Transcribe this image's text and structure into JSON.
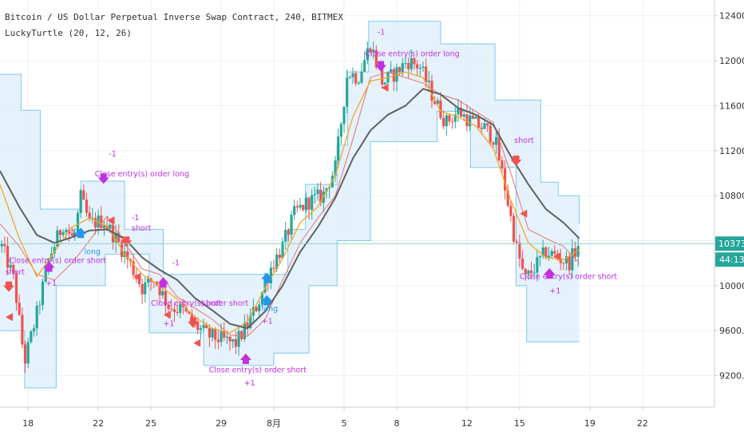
{
  "legend": {
    "title": "Bitcoin / US Dollar Perpetual Inverse Swap Contract, 240, BITMEX",
    "indicator": "LuckyTurtle (20, 12, 26)"
  },
  "price_badge": {
    "value": "10373.5",
    "countdown": "44:13"
  },
  "colors": {
    "up": "#26a69a",
    "down": "#ef5350",
    "channel_fill": "#dcedfb",
    "channel_line": "#7ec8ec",
    "slow_ma": "#606060",
    "fast_ma": "#f5a623",
    "trail": "#e57373",
    "annotation": "#c030e0",
    "long_text": "#2196f3",
    "badge": "#26a69a",
    "last_line": "#8fd0c9"
  },
  "chart_data": {
    "type": "candlestick",
    "y_axis": {
      "ylim": [
        8920,
        12540
      ],
      "ticks": [
        9200,
        9600,
        10000,
        10400,
        10800,
        11200,
        11600,
        12000,
        12400
      ],
      "tick_labels": [
        "9200.0",
        "9600.0",
        "10000.0",
        "10400.0",
        "10800.0",
        "11200.0",
        "11600.0",
        "12000.0",
        "12400.0"
      ]
    },
    "x_axis": {
      "ticks": [
        {
          "label": "18",
          "day": 18
        },
        {
          "label": "22",
          "day": 22
        },
        {
          "label": "25",
          "day": 25
        },
        {
          "label": "29",
          "day": 29
        },
        {
          "label": "8月",
          "day": 32
        },
        {
          "label": "5",
          "day": 36
        },
        {
          "label": "8",
          "day": 39
        },
        {
          "label": "12",
          "day": 43
        },
        {
          "label": "15",
          "day": 46
        },
        {
          "label": "19",
          "day": 50
        },
        {
          "label": "22",
          "day": 53
        }
      ],
      "day_range": [
        16.4,
        57.1
      ]
    },
    "anchors": [
      [
        16.5,
        10350
      ],
      [
        17.2,
        10050
      ],
      [
        17.8,
        9320
      ],
      [
        18.5,
        9750
      ],
      [
        19.2,
        10250
      ],
      [
        20.0,
        10550
      ],
      [
        20.6,
        10400
      ],
      [
        21.0,
        10780
      ],
      [
        21.5,
        10550
      ],
      [
        22.3,
        10580
      ],
      [
        23.0,
        10420
      ],
      [
        23.8,
        10200
      ],
      [
        24.5,
        9980
      ],
      [
        25.2,
        10060
      ],
      [
        26.0,
        9820
      ],
      [
        26.8,
        9780
      ],
      [
        27.5,
        9650
      ],
      [
        28.2,
        9560
      ],
      [
        29.0,
        9520
      ],
      [
        29.8,
        9480
      ],
      [
        30.5,
        9650
      ],
      [
        31.2,
        9880
      ],
      [
        31.8,
        10150
      ],
      [
        32.5,
        10350
      ],
      [
        33.2,
        10650
      ],
      [
        34.0,
        10750
      ],
      [
        34.8,
        10800
      ],
      [
        35.5,
        11050
      ],
      [
        36.2,
        11900
      ],
      [
        36.8,
        11850
      ],
      [
        37.5,
        12150
      ],
      [
        38.2,
        11800
      ],
      [
        39.0,
        11900
      ],
      [
        39.6,
        12000
      ],
      [
        40.3,
        11950
      ],
      [
        41.0,
        11700
      ],
      [
        41.8,
        11450
      ],
      [
        42.5,
        11550
      ],
      [
        43.3,
        11450
      ],
      [
        44.0,
        11400
      ],
      [
        44.6,
        11300
      ],
      [
        45.2,
        10850
      ],
      [
        45.8,
        10350
      ],
      [
        46.3,
        10050
      ],
      [
        46.8,
        10150
      ],
      [
        47.5,
        10300
      ],
      [
        48.2,
        10250
      ],
      [
        48.8,
        10200
      ],
      [
        49.4,
        10373.5
      ]
    ],
    "slow_ma": [
      [
        16.4,
        11020
      ],
      [
        17.5,
        10700
      ],
      [
        18.5,
        10450
      ],
      [
        19.5,
        10380
      ],
      [
        20.5,
        10430
      ],
      [
        21.5,
        10490
      ],
      [
        22.5,
        10500
      ],
      [
        23.5,
        10420
      ],
      [
        24.5,
        10250
      ],
      [
        25.5,
        10140
      ],
      [
        26.5,
        10050
      ],
      [
        27.5,
        9890
      ],
      [
        28.5,
        9780
      ],
      [
        29.5,
        9660
      ],
      [
        30.5,
        9620
      ],
      [
        31.5,
        9770
      ],
      [
        32.5,
        10000
      ],
      [
        33.5,
        10300
      ],
      [
        34.5,
        10520
      ],
      [
        35.5,
        10780
      ],
      [
        36.5,
        11130
      ],
      [
        37.5,
        11380
      ],
      [
        38.5,
        11520
      ],
      [
        39.5,
        11600
      ],
      [
        40.5,
        11750
      ],
      [
        41.5,
        11700
      ],
      [
        42.5,
        11580
      ],
      [
        43.5,
        11520
      ],
      [
        44.5,
        11430
      ],
      [
        45.5,
        11150
      ],
      [
        46.5,
        10900
      ],
      [
        47.5,
        10680
      ],
      [
        48.5,
        10560
      ],
      [
        49.4,
        10420
      ]
    ],
    "fast_ma": [
      [
        16.4,
        10900
      ],
      [
        17.5,
        10420
      ],
      [
        18.5,
        10080
      ],
      [
        19.5,
        10300
      ],
      [
        20.5,
        10520
      ],
      [
        21.5,
        10600
      ],
      [
        22.5,
        10530
      ],
      [
        23.5,
        10280
      ],
      [
        24.5,
        10100
      ],
      [
        25.5,
        10000
      ],
      [
        26.5,
        9880
      ],
      [
        27.5,
        9720
      ],
      [
        28.5,
        9620
      ],
      [
        29.5,
        9580
      ],
      [
        30.5,
        9680
      ],
      [
        31.5,
        9980
      ],
      [
        32.5,
        10240
      ],
      [
        33.5,
        10560
      ],
      [
        34.5,
        10700
      ],
      [
        35.5,
        10980
      ],
      [
        36.5,
        11500
      ],
      [
        37.5,
        11820
      ],
      [
        38.5,
        11850
      ],
      [
        39.5,
        11900
      ],
      [
        40.5,
        11850
      ],
      [
        41.5,
        11550
      ],
      [
        42.5,
        11500
      ],
      [
        43.5,
        11420
      ],
      [
        44.5,
        11220
      ],
      [
        45.5,
        10760
      ],
      [
        46.5,
        10380
      ],
      [
        47.5,
        10250
      ],
      [
        48.5,
        10230
      ],
      [
        49.4,
        10320
      ]
    ],
    "trail": [
      [
        16.4,
        10550
      ],
      [
        17.5,
        10350
      ],
      [
        18.5,
        10100
      ],
      [
        19.5,
        10050
      ],
      [
        20.5,
        10200
      ],
      [
        21.5,
        10400
      ],
      [
        22.5,
        10620
      ],
      [
        23.5,
        10380
      ],
      [
        24.5,
        10150
      ],
      [
        25.5,
        10100
      ],
      [
        26.5,
        9900
      ],
      [
        27.5,
        9800
      ],
      [
        28.5,
        9700
      ],
      [
        29.5,
        9560
      ],
      [
        30.5,
        9550
      ],
      [
        31.5,
        9700
      ],
      [
        32.5,
        10050
      ],
      [
        33.5,
        10380
      ],
      [
        34.5,
        10600
      ],
      [
        35.5,
        10800
      ],
      [
        36.5,
        11300
      ],
      [
        37.5,
        11850
      ],
      [
        38.5,
        11900
      ],
      [
        39.5,
        11850
      ],
      [
        40.5,
        11800
      ],
      [
        41.5,
        11700
      ],
      [
        42.5,
        11650
      ],
      [
        43.5,
        11550
      ],
      [
        44.5,
        11450
      ],
      [
        45.5,
        11000
      ],
      [
        46.5,
        10500
      ],
      [
        47.5,
        10420
      ],
      [
        48.5,
        10350
      ],
      [
        49.4,
        10200
      ]
    ],
    "channel_upper": [
      [
        16.4,
        11880
      ],
      [
        17.6,
        11560
      ],
      [
        18.7,
        10680
      ],
      [
        20.0,
        10680
      ],
      [
        21.0,
        10930
      ],
      [
        22.2,
        10930
      ],
      [
        23.5,
        10500
      ],
      [
        24.6,
        10500
      ],
      [
        25.7,
        10100
      ],
      [
        27.8,
        10100
      ],
      [
        31.8,
        10100
      ],
      [
        32.8,
        10500
      ],
      [
        33.8,
        10900
      ],
      [
        35.6,
        11250
      ],
      [
        36.2,
        11900
      ],
      [
        37.4,
        12350
      ],
      [
        40.8,
        12350
      ],
      [
        41.5,
        12150
      ],
      [
        43.5,
        12150
      ],
      [
        44.6,
        11650
      ],
      [
        46.5,
        11650
      ],
      [
        47.2,
        10920
      ],
      [
        48.2,
        10800
      ],
      [
        49.4,
        10550
      ]
    ],
    "channel_lower": [
      [
        16.4,
        9600
      ],
      [
        17.2,
        9600
      ],
      [
        17.8,
        9090
      ],
      [
        19.5,
        9090
      ],
      [
        19.6,
        10000
      ],
      [
        21.6,
        10000
      ],
      [
        22.4,
        10280
      ],
      [
        24.4,
        10280
      ],
      [
        24.9,
        9580
      ],
      [
        27.8,
        9580
      ],
      [
        28.0,
        9290
      ],
      [
        31.8,
        9290
      ],
      [
        32.0,
        9400
      ],
      [
        33.4,
        9400
      ],
      [
        34.0,
        10000
      ],
      [
        35.2,
        10000
      ],
      [
        35.6,
        10400
      ],
      [
        36.9,
        10400
      ],
      [
        37.5,
        11280
      ],
      [
        40.8,
        11280
      ],
      [
        41.3,
        11550
      ],
      [
        42.8,
        11550
      ],
      [
        43.2,
        11050
      ],
      [
        45.6,
        11050
      ],
      [
        45.8,
        10000
      ],
      [
        46.3,
        10000
      ],
      [
        46.4,
        9500
      ],
      [
        49.4,
        9500
      ]
    ],
    "annotations": [
      {
        "text": "short",
        "day": 16.7,
        "price": 10100,
        "color": "annotation"
      },
      {
        "text": "Close entry(s) order short",
        "day": 16.9,
        "price": 10200,
        "color": "annotation"
      },
      {
        "text": "+1",
        "day": 19.0,
        "price": 10000,
        "color": "annotation"
      },
      {
        "text": "-1",
        "day": 20.3,
        "price": 10450,
        "color": "annotation"
      },
      {
        "text": "long",
        "day": 21.2,
        "price": 10280,
        "color": "long_text"
      },
      {
        "text": "-1",
        "day": 22.6,
        "price": 11150,
        "color": "annotation"
      },
      {
        "text": "Close entry(s) order long",
        "day": 21.8,
        "price": 10970,
        "color": "annotation"
      },
      {
        "text": "short",
        "day": 23.9,
        "price": 10490,
        "color": "annotation"
      },
      {
        "text": "-1",
        "day": 23.9,
        "price": 10580,
        "color": "annotation"
      },
      {
        "text": "-1",
        "day": 26.2,
        "price": 10180,
        "color": "annotation"
      },
      {
        "text": "Close entry(s) order short",
        "day": 25.0,
        "price": 9820,
        "color": "annotation"
      },
      {
        "text": "short",
        "day": 27.9,
        "price": 9820,
        "color": "annotation"
      },
      {
        "text": "+1",
        "day": 25.7,
        "price": 9640,
        "color": "annotation"
      },
      {
        "text": "Close entry(s) order short",
        "day": 28.3,
        "price": 9230,
        "color": "annotation"
      },
      {
        "text": "+1",
        "day": 30.3,
        "price": 9110,
        "color": "annotation"
      },
      {
        "text": "long",
        "day": 31.3,
        "price": 9770,
        "color": "long_text"
      },
      {
        "text": "+1",
        "day": 31.3,
        "price": 9660,
        "color": "annotation"
      },
      {
        "text": "-1",
        "day": 37.9,
        "price": 12230,
        "color": "annotation"
      },
      {
        "text": "Close entry(s) order long",
        "day": 37.2,
        "price": 12040,
        "color": "annotation"
      },
      {
        "text": "short",
        "day": 45.7,
        "price": 11270,
        "color": "annotation"
      },
      {
        "text": "Close entry(s) order short",
        "day": 46.0,
        "price": 10060,
        "color": "annotation"
      },
      {
        "text": "+1",
        "day": 47.7,
        "price": 9930,
        "color": "annotation"
      }
    ],
    "markers": [
      {
        "kind": "down",
        "day": 16.9,
        "price": 9980,
        "color": "down"
      },
      {
        "kind": "left",
        "day": 16.9,
        "price": 9720,
        "color": "down"
      },
      {
        "kind": "up",
        "day": 19.2,
        "price": 10180,
        "color": "annotation"
      },
      {
        "kind": "up",
        "day": 21.0,
        "price": 10480,
        "color": "long_text"
      },
      {
        "kind": "down",
        "day": 22.3,
        "price": 10940,
        "color": "annotation"
      },
      {
        "kind": "left",
        "day": 22.7,
        "price": 10580,
        "color": "down"
      },
      {
        "kind": "down",
        "day": 23.6,
        "price": 10380,
        "color": "down"
      },
      {
        "kind": "left",
        "day": 24.2,
        "price": 10080,
        "color": "down"
      },
      {
        "kind": "up",
        "day": 25.7,
        "price": 10040,
        "color": "annotation"
      },
      {
        "kind": "left",
        "day": 25.9,
        "price": 9740,
        "color": "down"
      },
      {
        "kind": "down",
        "day": 27.4,
        "price": 9660,
        "color": "down"
      },
      {
        "kind": "left",
        "day": 27.6,
        "price": 9490,
        "color": "down"
      },
      {
        "kind": "up",
        "day": 30.4,
        "price": 9360,
        "color": "annotation"
      },
      {
        "kind": "up",
        "day": 31.6,
        "price": 9880,
        "color": "long_text"
      },
      {
        "kind": "up",
        "day": 31.6,
        "price": 10080,
        "color": "long_text"
      },
      {
        "kind": "down",
        "day": 38.1,
        "price": 11940,
        "color": "annotation"
      },
      {
        "kind": "left",
        "day": 38.3,
        "price": 11760,
        "color": "down"
      },
      {
        "kind": "down",
        "day": 45.8,
        "price": 11100,
        "color": "down"
      },
      {
        "kind": "left",
        "day": 46.2,
        "price": 10640,
        "color": "down"
      },
      {
        "kind": "up",
        "day": 47.7,
        "price": 10120,
        "color": "annotation"
      },
      {
        "kind": "left",
        "day": 48.1,
        "price": 10260,
        "color": "down"
      }
    ]
  }
}
